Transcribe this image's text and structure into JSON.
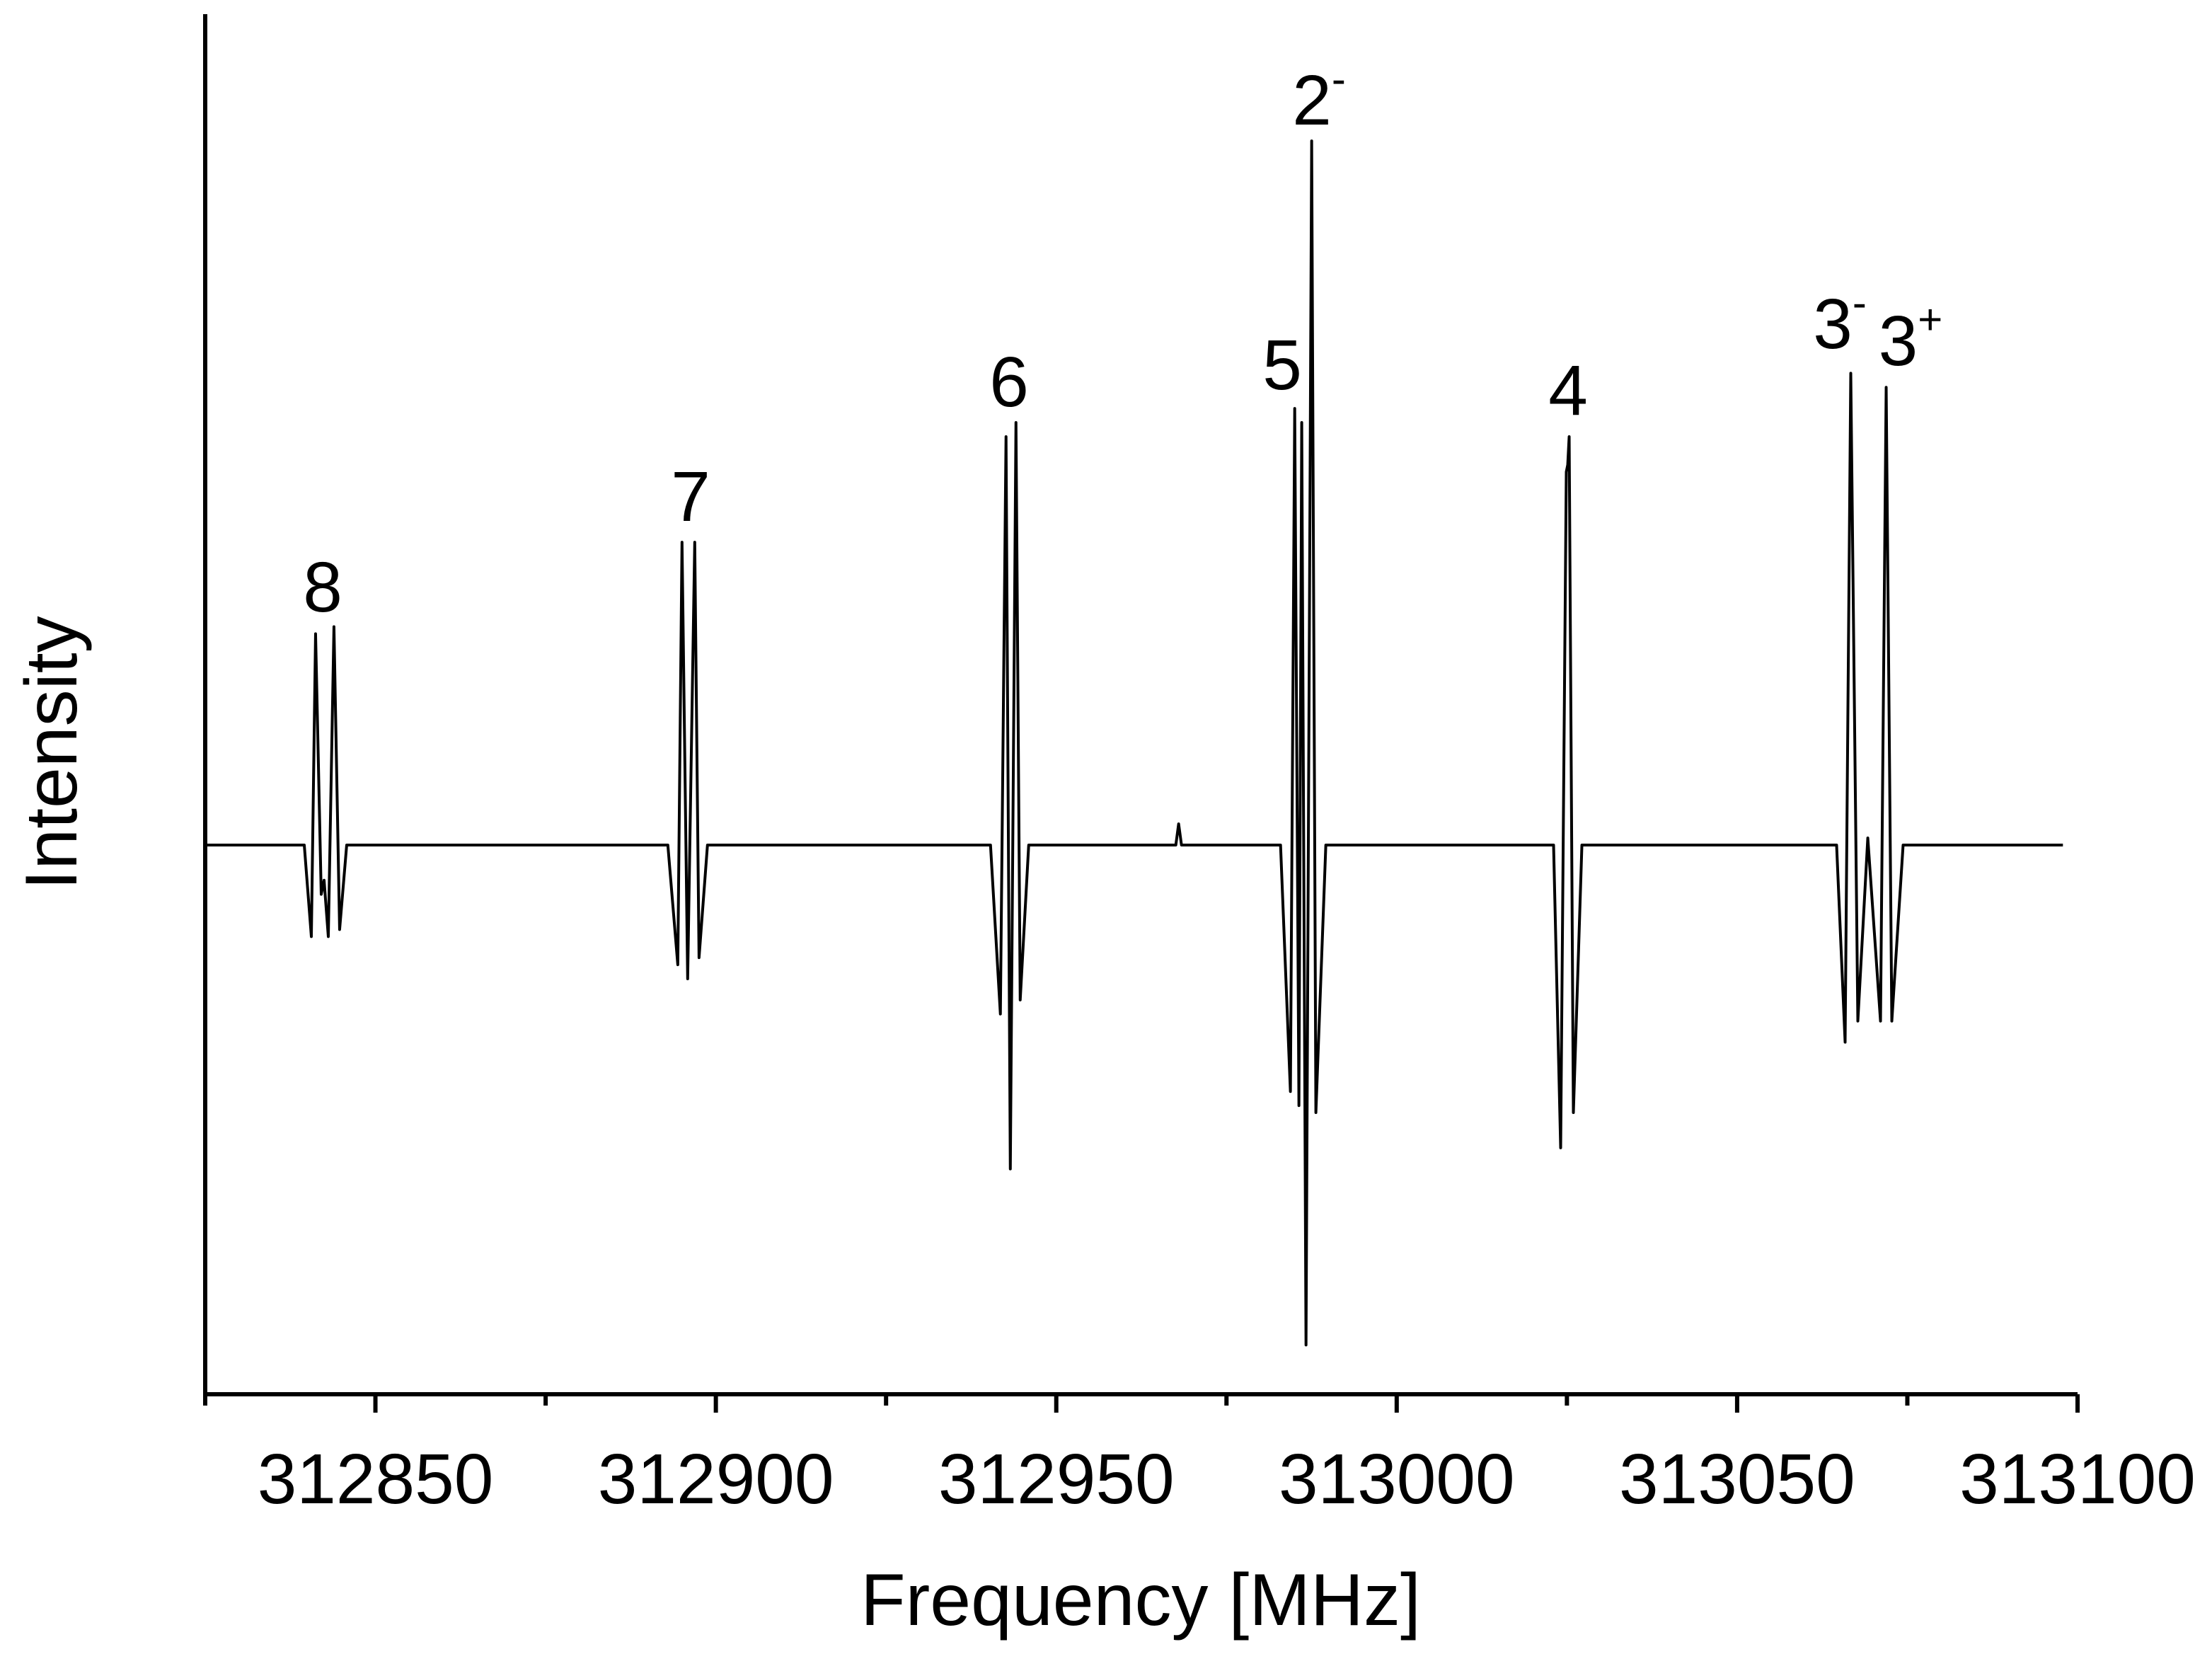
{
  "chart_data": {
    "type": "line",
    "xlabel": "Frequency [MHz]",
    "ylabel": "Intensity",
    "xlim": [
      312825,
      313100
    ],
    "ylim": [
      -0.78,
      1.18
    ],
    "xticks": [
      312850,
      312900,
      312950,
      313000,
      313050,
      313100
    ],
    "xminorticks": [
      312825,
      312875,
      312925,
      312975,
      313025,
      313075
    ],
    "series": [
      {
        "color": "#000000",
        "x": [
          312825.0,
          312839.55,
          312840.59,
          312841.21,
          312842.04,
          312842.46,
          312843.08,
          312843.91,
          312844.74,
          312845.78,
          312892.95,
          312894.41,
          312895.03,
          312895.86,
          312896.9,
          312897.53,
          312898.77,
          312940.34,
          312941.79,
          312942.62,
          312943.25,
          312944.08,
          312944.7,
          312945.95,
          312967.56,
          312967.97,
          312968.39,
          312982.94,
          312984.39,
          312985.02,
          312985.64,
          312986.05,
          312986.68,
          312987.51,
          312988.13,
          312989.59,
          313023.04,
          313024.08,
          313024.91,
          313025.12,
          313025.33,
          313025.95,
          313027.2,
          313064.61,
          313065.86,
          313066.69,
          313067.73,
          313069.19,
          313071.06,
          313071.89,
          313072.72,
          313074.38,
          313097.85
        ],
        "values": [
          0,
          0,
          -0.13,
          0.3,
          -0.07,
          -0.05,
          -0.13,
          0.31,
          -0.12,
          0,
          0,
          -0.17,
          0.43,
          -0.19,
          0.43,
          -0.16,
          0,
          0,
          -0.24,
          0.58,
          -0.46,
          0.6,
          -0.22,
          0,
          0,
          0.03,
          0,
          0,
          -0.35,
          0.62,
          -0.37,
          0.6,
          -0.71,
          1.0,
          -0.38,
          0,
          0,
          -0.43,
          0.53,
          0.54,
          0.58,
          -0.38,
          0,
          0,
          -0.28,
          0.67,
          -0.25,
          0.01,
          -0.25,
          0.65,
          -0.25,
          0,
          0
        ]
      }
    ],
    "annotations": [
      {
        "text": "8"
      },
      {
        "text": "7"
      },
      {
        "text": "6"
      },
      {
        "text": "5"
      },
      {
        "text": "2",
        "sup": "-"
      },
      {
        "text": "4"
      },
      {
        "text": "3",
        "sup": "-"
      },
      {
        "text": "3",
        "sup": "+"
      }
    ]
  }
}
